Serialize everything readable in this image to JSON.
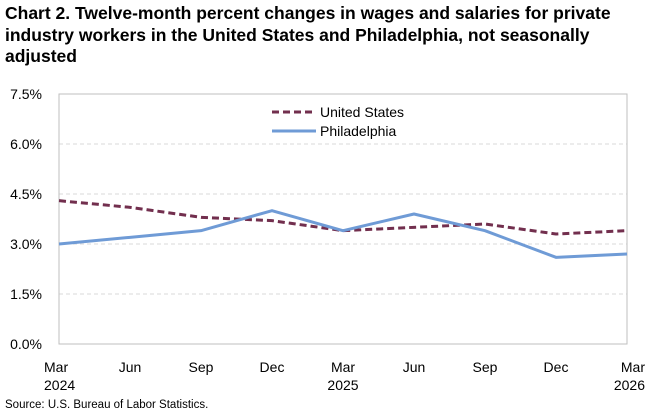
{
  "chart_data": {
    "type": "line",
    "title": "Chart 2. Twelve-month percent changes in wages and salaries for private industry workers in the United States and Philadelphia, not seasonally adjusted",
    "source": "Source: U.S. Bureau of Labor Statistics.",
    "categories": [
      {
        "month": "Mar",
        "year": "2024"
      },
      {
        "month": "Jun",
        "year": ""
      },
      {
        "month": "Sep",
        "year": ""
      },
      {
        "month": "Dec",
        "year": ""
      },
      {
        "month": "Mar",
        "year": "2025"
      },
      {
        "month": "Jun",
        "year": ""
      },
      {
        "month": "Sep",
        "year": ""
      },
      {
        "month": "Dec",
        "year": ""
      },
      {
        "month": "Mar",
        "year": "2026"
      }
    ],
    "ylim": [
      0,
      7.5
    ],
    "yticks": [
      0.0,
      1.5,
      3.0,
      4.5,
      6.0,
      7.5
    ],
    "ytick_labels": [
      "0.0%",
      "1.5%",
      "3.0%",
      "4.5%",
      "6.0%",
      "7.5%"
    ],
    "grid": true,
    "legend_position": "top-center",
    "series": [
      {
        "name": "United States",
        "color": "#722F4E",
        "style": "dashed",
        "values": [
          4.3,
          4.1,
          3.8,
          3.7,
          3.4,
          3.5,
          3.6,
          3.3,
          3.4
        ]
      },
      {
        "name": "Philadelphia",
        "color": "#6F9BD6",
        "style": "solid",
        "values": [
          3.0,
          3.2,
          3.4,
          4.0,
          3.4,
          3.9,
          3.4,
          2.6,
          2.7
        ]
      }
    ]
  }
}
